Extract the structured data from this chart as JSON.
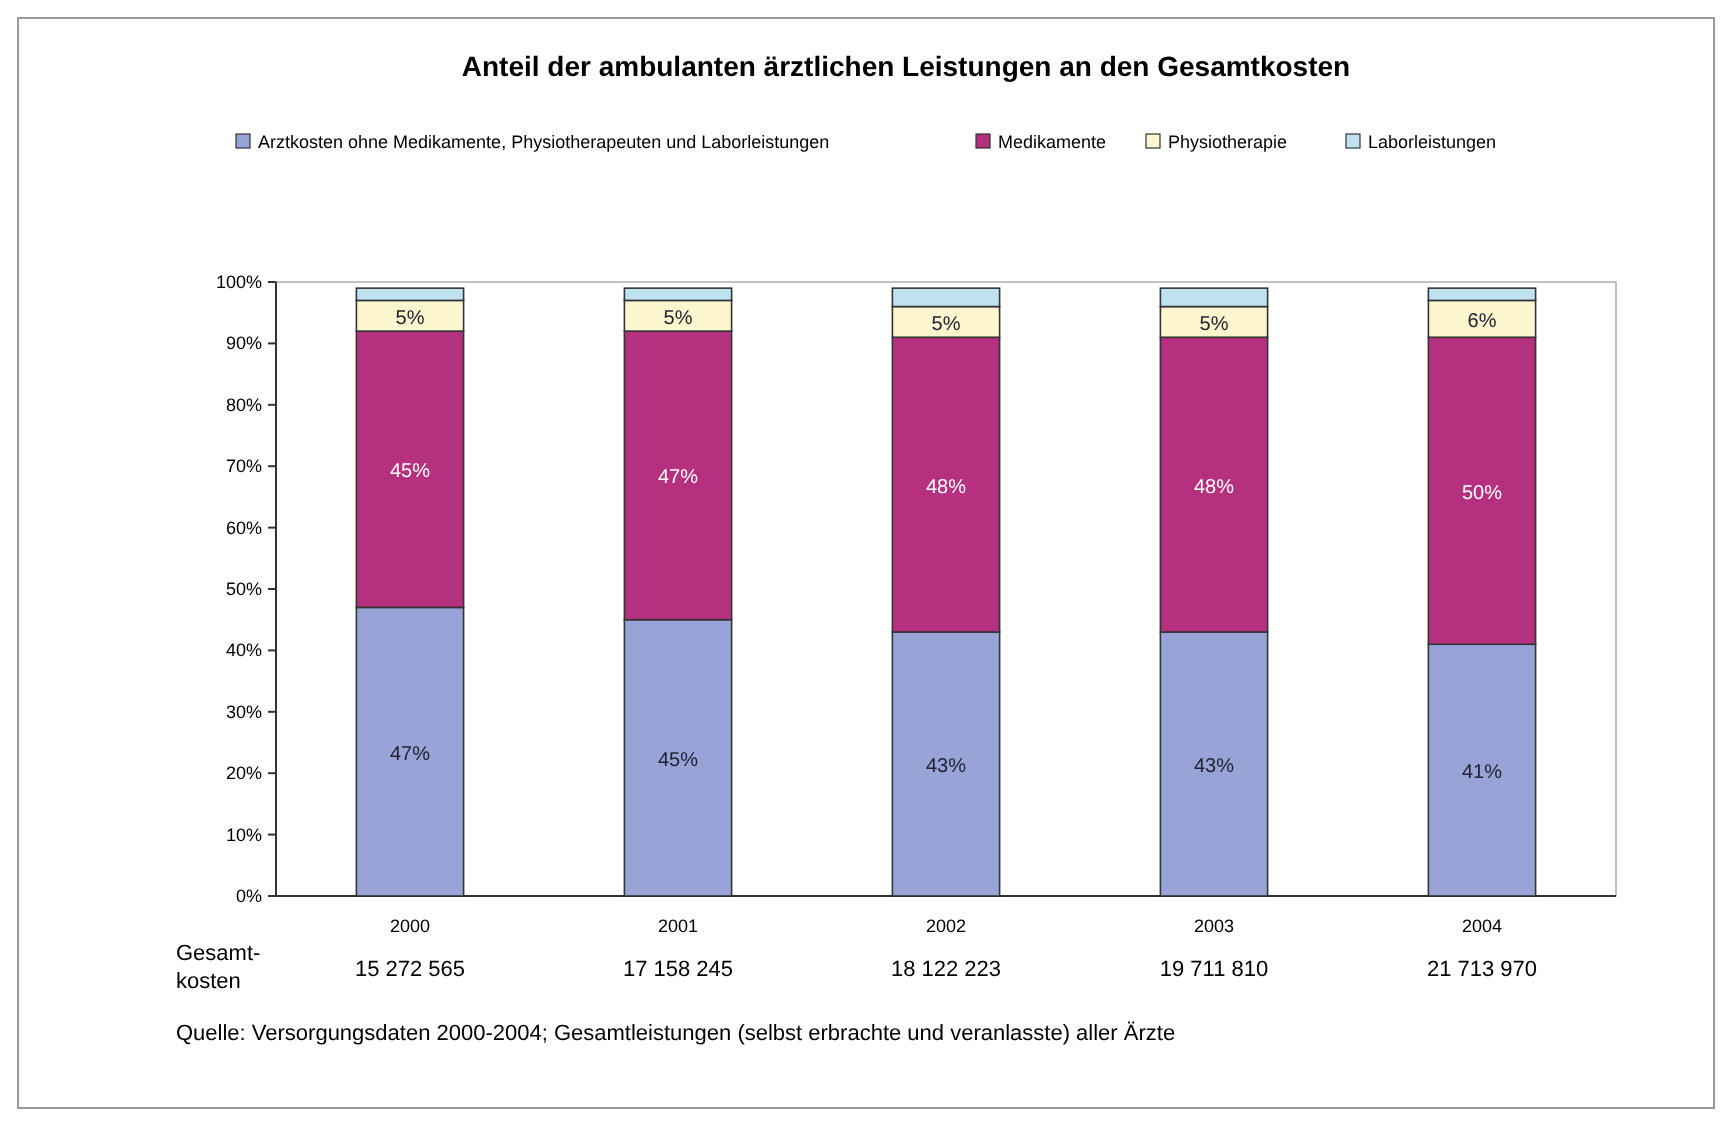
{
  "chart_data": {
    "type": "bar",
    "stacked": true,
    "title": "Anteil der ambulanten ärztlichen Leistungen an den Gesamtkosten",
    "categories": [
      "2000",
      "2001",
      "2002",
      "2003",
      "2004"
    ],
    "series": [
      {
        "name": "Arztkosten ohne Medikamente, Physiotherapeuten und Laborleistungen",
        "color": "#98a4d8",
        "values": [
          47,
          45,
          43,
          43,
          41
        ],
        "value_labels": [
          "47%",
          "45%",
          "43%",
          "43%",
          "41%"
        ]
      },
      {
        "name": "Medikamente",
        "color": "#b5307f",
        "values": [
          45,
          47,
          48,
          48,
          50
        ],
        "value_labels": [
          "45%",
          "47%",
          "48%",
          "48%",
          "50%"
        ]
      },
      {
        "name": "Physiotherapie",
        "color": "#fdf6cf",
        "values": [
          5,
          5,
          5,
          5,
          6
        ],
        "value_labels": [
          "5%",
          "5%",
          "5%",
          "5%",
          "6%"
        ]
      },
      {
        "name": "Laborleistungen",
        "color": "#bfe3ee",
        "values": [
          2,
          2,
          3,
          3,
          2
        ]
      }
    ],
    "ylim": [
      0,
      100
    ],
    "yticks": [
      {
        "value": 0,
        "label": "0%"
      },
      {
        "value": 10,
        "label": "10%"
      },
      {
        "value": 20,
        "label": "20%"
      },
      {
        "value": 30,
        "label": "30%"
      },
      {
        "value": 40,
        "label": "40%"
      },
      {
        "value": 50,
        "label": "50%"
      },
      {
        "value": 60,
        "label": "60%"
      },
      {
        "value": 70,
        "label": "70%"
      },
      {
        "value": 80,
        "label": "80%"
      },
      {
        "value": 90,
        "label": "90%"
      },
      {
        "value": 100,
        "label": "100%"
      }
    ],
    "legend": "top",
    "grid": false,
    "annotations": [
      "Gesamt-kosten",
      "15 272 565",
      "17 158 245",
      "18 122 223",
      "19 711 810",
      "21 713 970",
      "Quelle: Versorgungsdaten 2000-2004; Gesamtleistungen (selbst erbrachte und veranlasste) aller Ärzte"
    ]
  }
}
